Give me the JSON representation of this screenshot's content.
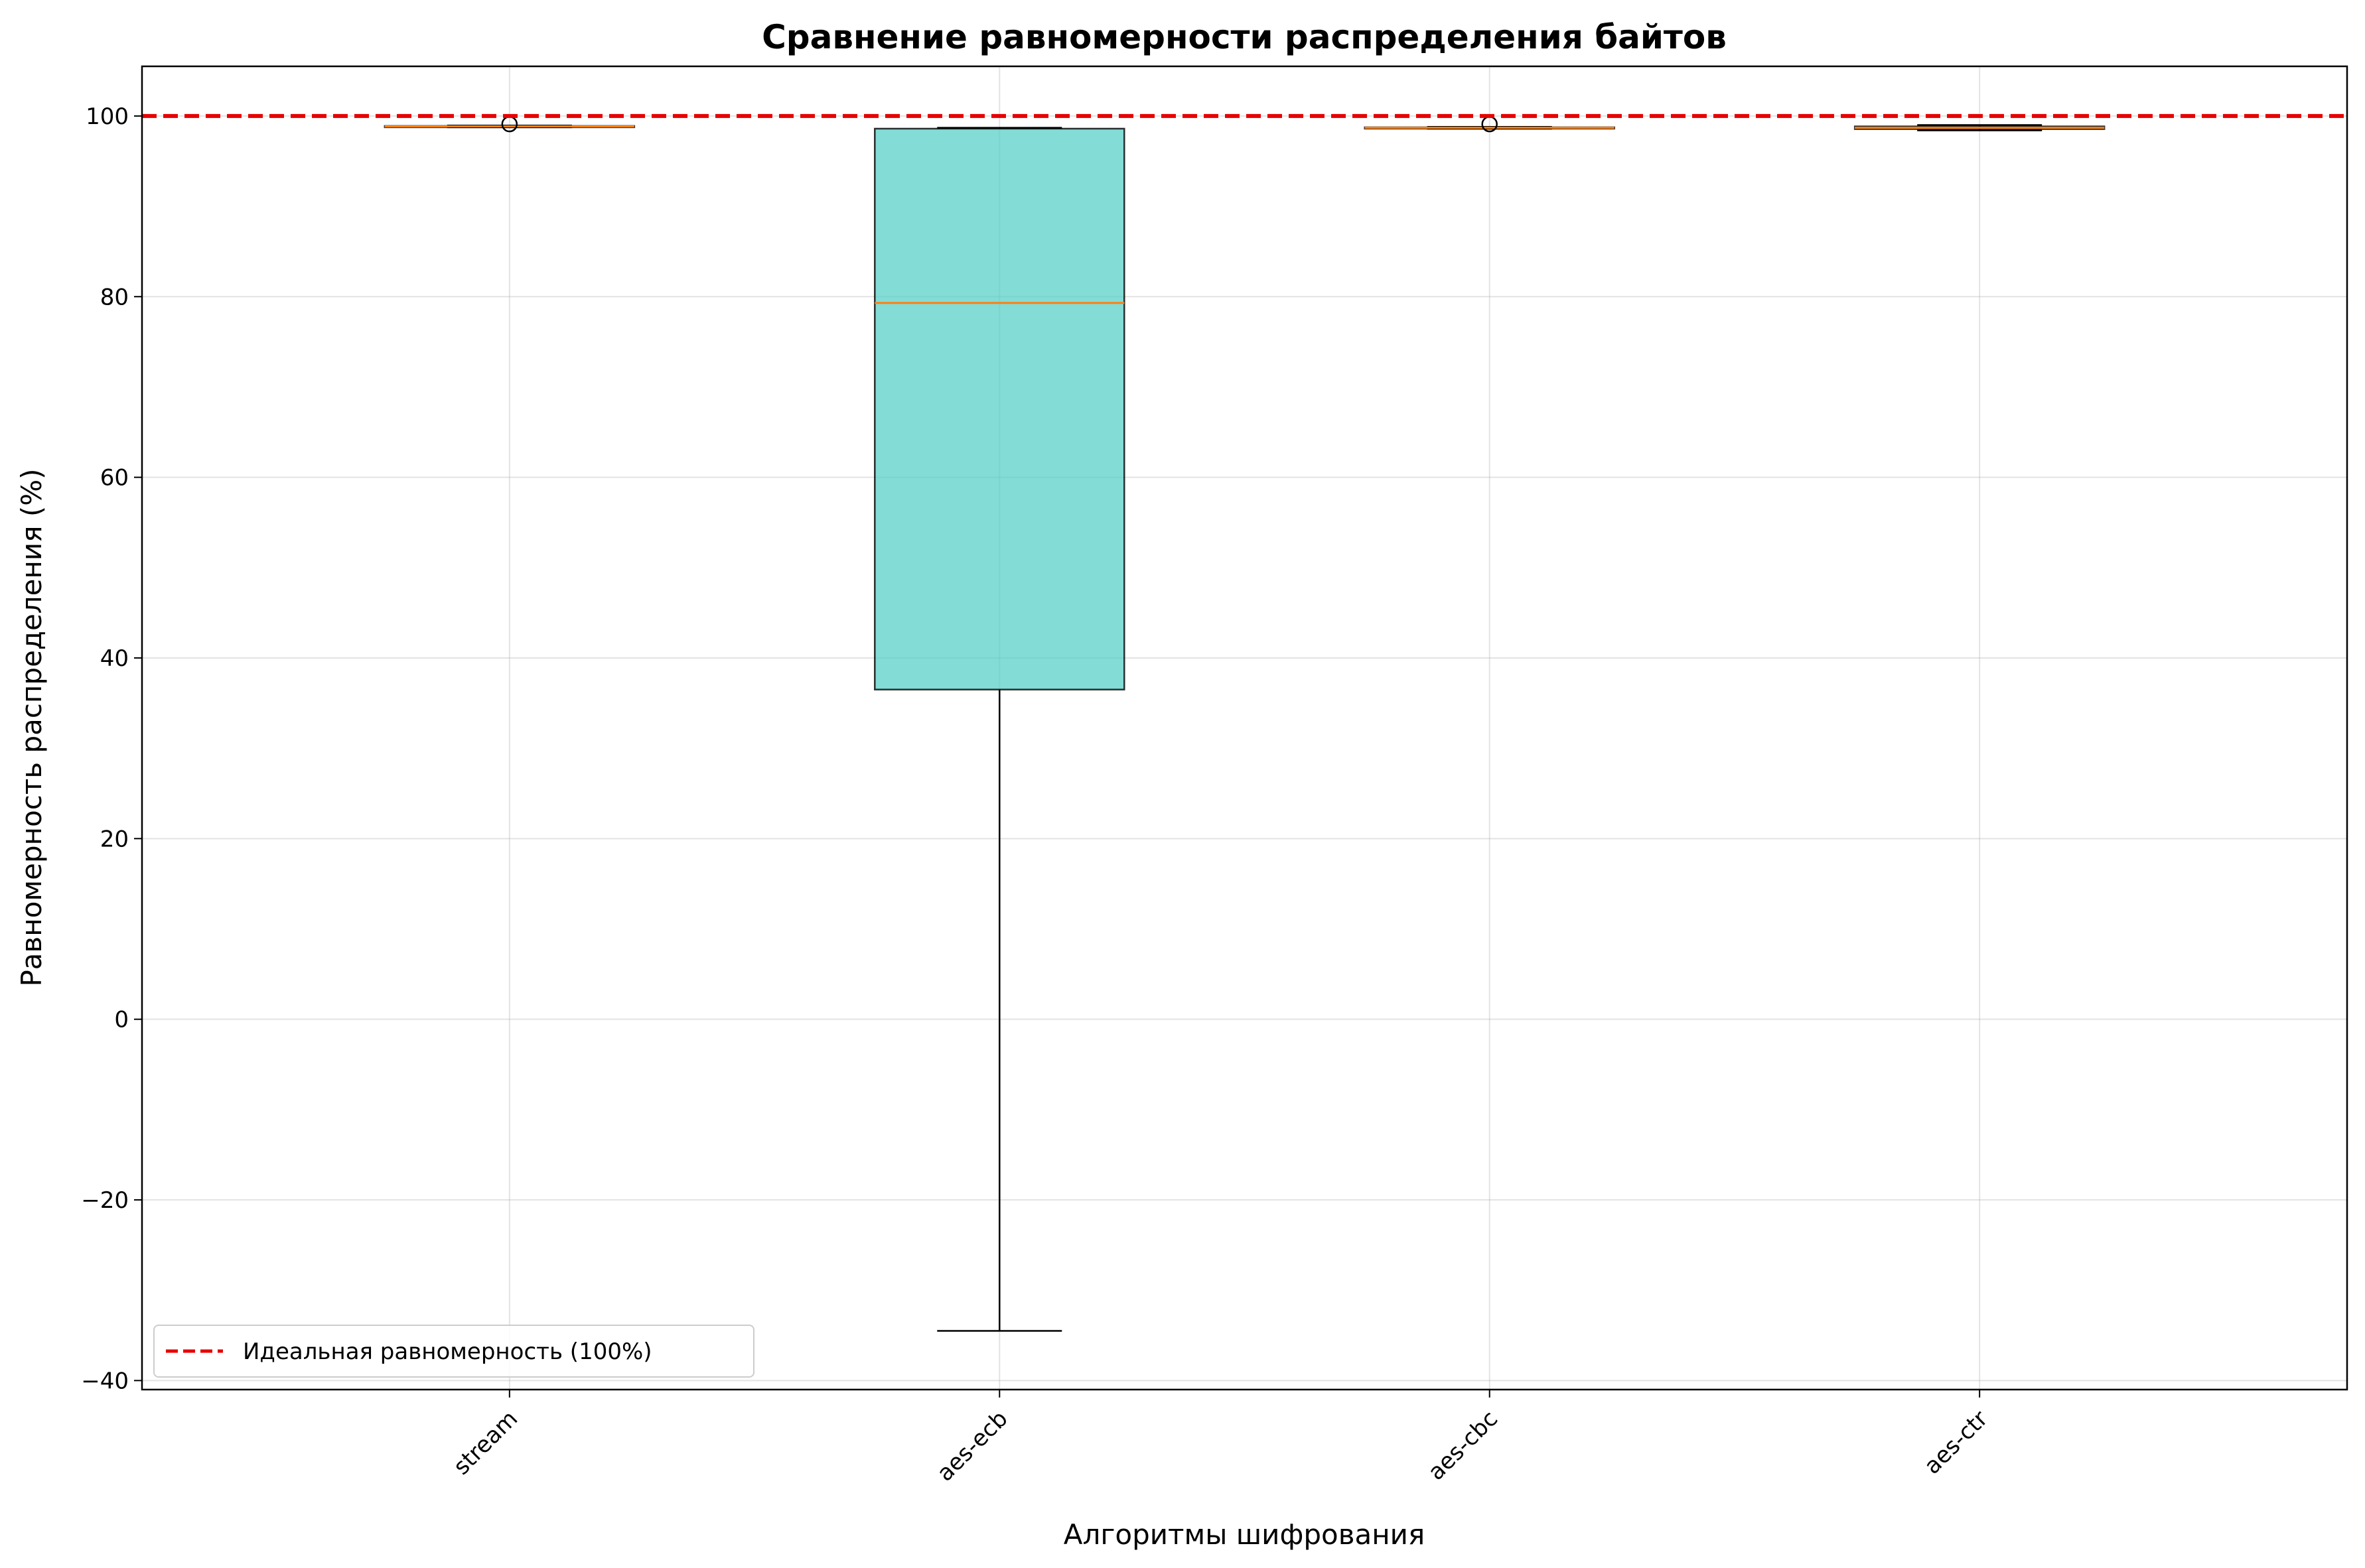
{
  "chart_data": {
    "type": "box",
    "title": "Сравнение равномерности распределения байтов",
    "xlabel": "Алгоритмы шифрования",
    "ylabel": "Равномерность распределения (%)",
    "ylim": [
      -41,
      105.5
    ],
    "yticks": [
      -40,
      -20,
      0,
      20,
      40,
      60,
      80,
      100
    ],
    "ytick_labels": [
      "−40",
      "−20",
      "0",
      "20",
      "40",
      "60",
      "80",
      "100"
    ],
    "grid": true,
    "categories": [
      "stream",
      "aes-ecb",
      "aes-cbc",
      "aes-ctr"
    ],
    "boxes": [
      {
        "name": "stream",
        "whisker_low": 98.75,
        "q1": 98.8,
        "median": 98.85,
        "q3": 98.9,
        "whisker_high": 98.95,
        "outliers": [
          99.1
        ],
        "color": "#FF6B6B"
      },
      {
        "name": "aes-ecb",
        "whisker_low": -34.5,
        "q1": 36.5,
        "median": 79.3,
        "q3": 98.6,
        "whisker_high": 98.7,
        "outliers": [],
        "color": "#4ECDC4"
      },
      {
        "name": "aes-cbc",
        "whisker_low": 98.6,
        "q1": 98.65,
        "median": 98.7,
        "q3": 98.75,
        "whisker_high": 98.8,
        "outliers": [
          99.1
        ],
        "color": "#45B7D1"
      },
      {
        "name": "aes-ctr",
        "whisker_low": 98.4,
        "q1": 98.55,
        "median": 98.7,
        "q3": 98.85,
        "whisker_high": 99.0,
        "outliers": [],
        "color": "#96CEB4"
      }
    ],
    "reference_line": {
      "value": 100,
      "label": "Идеальная равномерность (100%)",
      "color": "#e60000"
    },
    "legend_position": "lower-left",
    "colors": {
      "median": "#ff7f0e",
      "reference": "#e60000"
    }
  }
}
